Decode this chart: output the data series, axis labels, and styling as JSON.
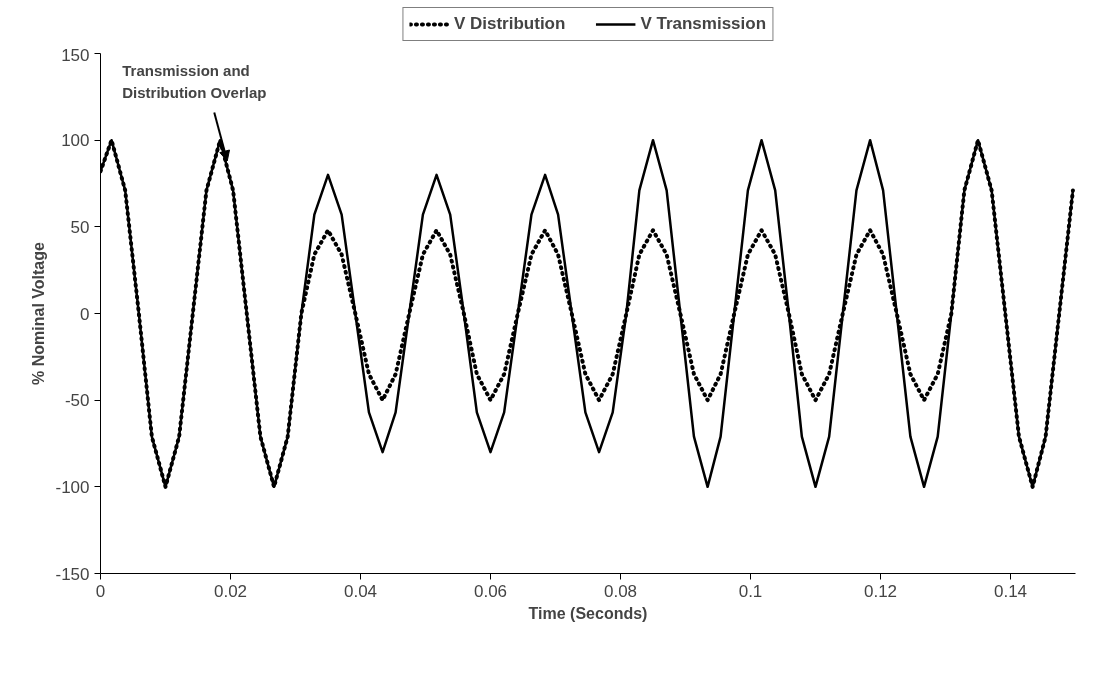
{
  "chart_data": {
    "type": "line",
    "xlabel": "Time (Seconds)",
    "ylabel": "% Nominal Voltage",
    "x": [
      0,
      0.0017,
      0.0038,
      0.0059,
      0.0079,
      0.01,
      0.0121,
      0.0142,
      0.0163,
      0.0184,
      0.0204,
      0.0225,
      0.0246,
      0.0267,
      0.0288,
      0.0309,
      0.0329,
      0.035,
      0.0371,
      0.0392,
      0.0413,
      0.0434,
      0.0454,
      0.0475,
      0.0496,
      0.0517,
      0.0538,
      0.0559,
      0.0579,
      0.06,
      0.0621,
      0.0642,
      0.0663,
      0.0684,
      0.0704,
      0.0725,
      0.0746,
      0.0767,
      0.0788,
      0.0809,
      0.0829,
      0.085,
      0.0871,
      0.0892,
      0.0913,
      0.0934,
      0.0954,
      0.0975,
      0.0996,
      0.1017,
      0.1038,
      0.1059,
      0.1079,
      0.11,
      0.1121,
      0.1142,
      0.1163,
      0.1184,
      0.1204,
      0.1225,
      0.1246,
      0.1267,
      0.1288,
      0.1309,
      0.1329,
      0.135,
      0.1371,
      0.1392,
      0.1413,
      0.1434,
      0.1454,
      0.1475,
      0.1496
    ],
    "series": [
      {
        "name": "V Distribution",
        "color": "#000000",
        "line_style": "dotted",
        "values": [
          82,
          100,
          71,
          0,
          -71,
          -100,
          -71,
          0,
          71,
          100,
          71,
          0,
          -71,
          -100,
          -71,
          0,
          34,
          48,
          34,
          0,
          -35,
          -50,
          -35,
          0,
          34,
          48,
          34,
          0,
          -35,
          -50,
          -35,
          0,
          34,
          48,
          34,
          0,
          -35,
          -50,
          -35,
          0,
          34,
          48,
          34,
          0,
          -35,
          -50,
          -35,
          0,
          34,
          48,
          34,
          0,
          -35,
          -50,
          -35,
          0,
          34,
          48,
          34,
          0,
          -35,
          -50,
          -35,
          0,
          71,
          100,
          71,
          0,
          -71,
          -100,
          -71,
          0,
          71
        ]
      },
      {
        "name": "V Transmission",
        "color": "#000000",
        "line_style": "solid",
        "values": [
          82,
          100,
          71,
          0,
          -71,
          -100,
          -71,
          0,
          71,
          100,
          71,
          0,
          -71,
          -100,
          -71,
          0,
          57,
          80,
          57,
          0,
          -57,
          -80,
          -57,
          0,
          57,
          80,
          57,
          0,
          -57,
          -80,
          -57,
          0,
          57,
          80,
          57,
          0,
          -57,
          -80,
          -57,
          0,
          71,
          100,
          71,
          0,
          -71,
          -100,
          -71,
          0,
          71,
          100,
          71,
          0,
          -71,
          -100,
          -71,
          0,
          71,
          100,
          71,
          0,
          -71,
          -100,
          -71,
          0,
          71,
          100,
          71,
          0,
          -71,
          -100,
          -71,
          0,
          71
        ]
      }
    ],
    "xlim": [
      0,
      0.15
    ],
    "ylim": [
      -150,
      150
    ],
    "xticks": [
      0,
      0.02,
      0.04,
      0.06,
      0.08,
      0.1,
      0.12,
      0.14
    ],
    "yticks": [
      -150,
      -100,
      -50,
      0,
      50,
      100,
      150
    ],
    "grid": false,
    "legend": "top",
    "marker": "none",
    "annotations": [
      {
        "text": "Transmission and\nDistribution Overlap",
        "x": 0.0195,
        "y": 88
      }
    ]
  }
}
